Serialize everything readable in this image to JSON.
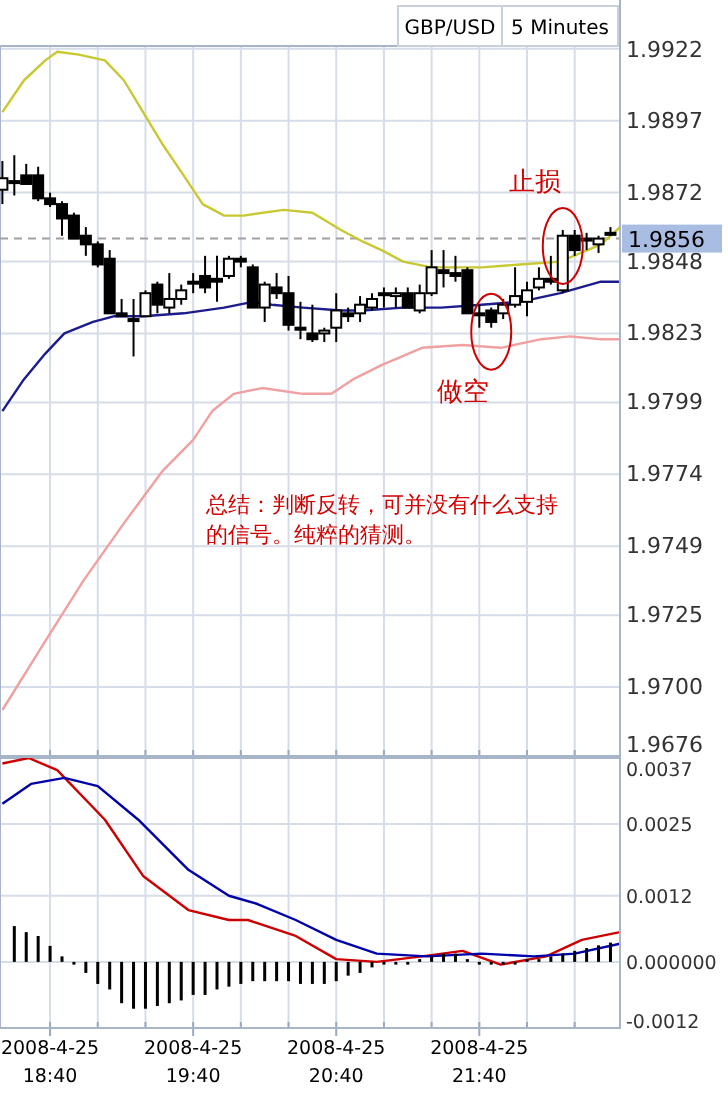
{
  "chart_data": [
    {
      "type": "candlestick",
      "title": "GBP/USD",
      "subtitle": "5 Minutes",
      "x": [
        "2008-04-25T18:20",
        "2008-04-25T18:25",
        "2008-04-25T18:30",
        "2008-04-25T18:35",
        "2008-04-25T18:40",
        "2008-04-25T18:45",
        "2008-04-25T18:50",
        "2008-04-25T18:55",
        "2008-04-25T19:00",
        "2008-04-25T19:05",
        "2008-04-25T19:10",
        "2008-04-25T19:15",
        "2008-04-25T19:20",
        "2008-04-25T19:25",
        "2008-04-25T19:30",
        "2008-04-25T19:35",
        "2008-04-25T19:40",
        "2008-04-25T19:45",
        "2008-04-25T19:50",
        "2008-04-25T19:55",
        "2008-04-25T20:00",
        "2008-04-25T20:05",
        "2008-04-25T20:10",
        "2008-04-25T20:15",
        "2008-04-25T20:20",
        "2008-04-25T20:25",
        "2008-04-25T20:30",
        "2008-04-25T20:35",
        "2008-04-25T20:40",
        "2008-04-25T20:45",
        "2008-04-25T20:50",
        "2008-04-25T20:55",
        "2008-04-25T21:00",
        "2008-04-25T21:05",
        "2008-04-25T21:10",
        "2008-04-25T21:15",
        "2008-04-25T21:20",
        "2008-04-25T21:25",
        "2008-04-25T21:30",
        "2008-04-25T21:35",
        "2008-04-25T21:40",
        "2008-04-25T21:45",
        "2008-04-25T21:50",
        "2008-04-25T21:55",
        "2008-04-25T22:00",
        "2008-04-25T22:05",
        "2008-04-25T22:10",
        "2008-04-25T22:15",
        "2008-04-25T22:20",
        "2008-04-25T22:25",
        "2008-04-25T22:30",
        "2008-04-25T22:35"
      ],
      "ohlc": [
        [
          1.9873,
          1.9883,
          1.9868,
          1.9877
        ],
        [
          1.9876,
          1.9885,
          1.9871,
          1.9876
        ],
        [
          1.9878,
          1.9882,
          1.9875,
          1.9875
        ],
        [
          1.9878,
          1.9881,
          1.9869,
          1.987
        ],
        [
          1.987,
          1.9872,
          1.9867,
          1.9868
        ],
        [
          1.9868,
          1.9869,
          1.9857,
          1.9863
        ],
        [
          1.9864,
          1.9865,
          1.9856,
          1.9856
        ],
        [
          1.9857,
          1.986,
          1.985,
          1.9854
        ],
        [
          1.9854,
          1.9855,
          1.9846,
          1.9847
        ],
        [
          1.9849,
          1.9852,
          1.983,
          1.983
        ],
        [
          1.983,
          1.9835,
          1.9829,
          1.9829
        ],
        [
          1.9828,
          1.9835,
          1.9815,
          1.9828
        ],
        [
          1.9829,
          1.9838,
          1.9829,
          1.9837
        ],
        [
          1.984,
          1.9841,
          1.983,
          1.9833
        ],
        [
          1.9832,
          1.9844,
          1.983,
          1.9835
        ],
        [
          1.9835,
          1.984,
          1.9833,
          1.9838
        ],
        [
          1.9841,
          1.9844,
          1.9837,
          1.9841
        ],
        [
          1.9843,
          1.985,
          1.9837,
          1.9839
        ],
        [
          1.9842,
          1.985,
          1.9834,
          1.9841
        ],
        [
          1.9843,
          1.985,
          1.9842,
          1.9849
        ],
        [
          1.9849,
          1.985,
          1.9846,
          1.9848
        ],
        [
          1.9846,
          1.9847,
          1.9832,
          1.9832
        ],
        [
          1.9832,
          1.9841,
          1.9827,
          1.984
        ],
        [
          1.9839,
          1.9844,
          1.9835,
          1.9837
        ],
        [
          1.9837,
          1.9843,
          1.9824,
          1.9826
        ],
        [
          1.9825,
          1.9834,
          1.9821,
          1.9825
        ],
        [
          1.9823,
          1.9833,
          1.982,
          1.9821
        ],
        [
          1.9823,
          1.9825,
          1.982,
          1.9824
        ],
        [
          1.9825,
          1.9837,
          1.982,
          1.9831
        ],
        [
          1.983,
          1.9832,
          1.9827,
          1.9829
        ],
        [
          1.983,
          1.9836,
          1.9827,
          1.9833
        ],
        [
          1.9832,
          1.9837,
          1.9831,
          1.9835
        ],
        [
          1.9837,
          1.9839,
          1.9832,
          1.9837
        ],
        [
          1.9836,
          1.9839,
          1.9832,
          1.9837
        ],
        [
          1.9837,
          1.9839,
          1.9832,
          1.9832
        ],
        [
          1.9831,
          1.984,
          1.983,
          1.9837
        ],
        [
          1.9837,
          1.9852,
          1.9836,
          1.9846
        ],
        [
          1.9845,
          1.9852,
          1.9839,
          1.9844
        ],
        [
          1.9844,
          1.985,
          1.9841,
          1.9843
        ],
        [
          1.9845,
          1.9846,
          1.983,
          1.983
        ],
        [
          1.983,
          1.9833,
          1.9825,
          1.983
        ],
        [
          1.9831,
          1.9832,
          1.9825,
          1.9827
        ],
        [
          1.983,
          1.9835,
          1.9828,
          1.9833
        ],
        [
          1.9833,
          1.9846,
          1.9832,
          1.9836
        ],
        [
          1.9834,
          1.9841,
          1.9829,
          1.9838
        ],
        [
          1.9839,
          1.9846,
          1.9838,
          1.9842
        ],
        [
          1.9842,
          1.985,
          1.984,
          1.9841
        ],
        [
          1.9838,
          1.9859,
          1.9837,
          1.9857
        ],
        [
          1.9857,
          1.9859,
          1.985,
          1.9852
        ],
        [
          1.9856,
          1.9858,
          1.9852,
          1.9856
        ],
        [
          1.9854,
          1.9857,
          1.9851,
          1.9856
        ],
        [
          1.9858,
          1.986,
          1.9857,
          1.9858
        ]
      ],
      "series": [
        {
          "type": "line",
          "color": "#c8c832",
          "x": [
            "2008-04-25T18:20",
            "2008-04-25T18:29",
            "2008-04-25T18:38",
            "2008-04-25T18:43",
            "2008-04-25T18:52",
            "2008-04-25T19:03",
            "2008-04-25T19:11",
            "2008-04-25T19:19",
            "2008-04-25T19:27",
            "2008-04-25T19:36",
            "2008-04-25T19:44",
            "2008-04-25T19:53",
            "2008-04-25T20:01",
            "2008-04-25T20:18",
            "2008-04-25T20:30",
            "2008-04-25T20:42",
            "2008-04-25T20:51",
            "2008-04-25T20:59",
            "2008-04-25T21:08",
            "2008-04-25T21:20",
            "2008-04-25T21:41",
            "2008-04-25T21:57",
            "2008-04-25T22:14",
            "2008-04-25T22:31",
            "2008-04-25T22:39"
          ],
          "values": [
            1.99,
            1.9911,
            1.9918,
            1.9921,
            1.992,
            1.9918,
            1.9911,
            1.99,
            1.9889,
            1.9878,
            1.9868,
            1.9864,
            1.9864,
            1.9866,
            1.9865,
            1.9859,
            1.9855,
            1.9852,
            1.9848,
            1.9846,
            1.9846,
            1.9847,
            1.9848,
            1.9854,
            1.986
          ]
        },
        {
          "type": "line",
          "color": "#1c1c8c",
          "x": [
            "2008-04-25T18:20",
            "2008-04-25T18:29",
            "2008-04-25T18:38",
            "2008-04-25T18:46",
            "2008-04-25T18:58",
            "2008-04-25T19:07",
            "2008-04-25T19:19",
            "2008-04-25T19:36",
            "2008-04-25T19:53",
            "2008-04-25T20:05",
            "2008-04-25T20:13",
            "2008-04-25T20:26",
            "2008-04-25T20:42",
            "2008-04-25T20:51",
            "2008-04-25T21:08",
            "2008-04-25T21:24",
            "2008-04-25T21:41",
            "2008-04-25T21:57",
            "2008-04-25T22:14",
            "2008-04-25T22:31",
            "2008-04-25T22:39"
          ],
          "values": [
            1.9796,
            1.9807,
            1.9816,
            1.9823,
            1.9827,
            1.9829,
            1.9829,
            1.983,
            1.9832,
            1.9834,
            1.9833,
            1.9832,
            1.9831,
            1.9831,
            1.9832,
            1.9832,
            1.9833,
            1.9834,
            1.9837,
            1.9841,
            1.9841
          ]
        },
        {
          "type": "line",
          "color": "#f0a0a0",
          "x": [
            "2008-04-25T18:20",
            "2008-04-25T18:38",
            "2008-04-25T18:54",
            "2008-04-25T19:11",
            "2008-04-25T19:27",
            "2008-04-25T19:40",
            "2008-04-25T19:48",
            "2008-04-25T19:57",
            "2008-04-25T20:09",
            "2008-04-25T20:26",
            "2008-04-25T20:38",
            "2008-04-25T20:47",
            "2008-04-25T20:59",
            "2008-04-25T21:16",
            "2008-04-25T21:33",
            "2008-04-25T21:49",
            "2008-04-25T22:06",
            "2008-04-25T22:18",
            "2008-04-25T22:31",
            "2008-04-25T22:39"
          ],
          "values": [
            1.9692,
            1.9716,
            1.9737,
            1.9757,
            1.9775,
            1.9786,
            1.9796,
            1.9802,
            1.9804,
            1.9802,
            1.9802,
            1.9807,
            1.9812,
            1.9818,
            1.9819,
            1.9818,
            1.9821,
            1.9822,
            1.9821,
            1.9821
          ]
        }
      ],
      "xlim": [
        "2008-04-25T18:19",
        "2008-04-25T22:39"
      ],
      "xticks": [
        {
          "value": "2008-04-25T18:40",
          "label": null
        },
        {
          "value": "2008-04-25T19:00",
          "label": null
        },
        {
          "value": "2008-04-25T19:20",
          "label": null
        },
        {
          "value": "2008-04-25T19:40",
          "label": null
        },
        {
          "value": "2008-04-25T20:00",
          "label": null
        },
        {
          "value": "2008-04-25T20:20",
          "label": null
        },
        {
          "value": "2008-04-25T20:40",
          "label": null
        },
        {
          "value": "2008-04-25T21:00",
          "label": null
        },
        {
          "value": "2008-04-25T21:20",
          "label": null
        },
        {
          "value": "2008-04-25T21:40",
          "label": null
        },
        {
          "value": "2008-04-25T22:00",
          "label": null
        },
        {
          "value": "2008-04-25T22:20",
          "label": null
        }
      ],
      "ylim": [
        1.9676,
        1.9923
      ],
      "yticks": [
        1.9922,
        1.9897,
        1.9872,
        1.9848,
        1.9823,
        1.9799,
        1.9774,
        1.9749,
        1.9725,
        {
          "value": 1.97,
          "label": "1.9700"
        },
        1.9676
      ],
      "ref_lines": [
        {
          "axis": "y",
          "value": 1.9856,
          "label": "1.9856",
          "color": "#a0a0a0",
          "line_style": "dashed"
        }
      ],
      "annotations": [
        {
          "text": "止损",
          "x": "2008-04-25T22:15",
          "y": 1.9859
        },
        {
          "text": "做空",
          "x": "2008-04-25T21:45",
          "y": 1.9825
        },
        "总结：判断反转，可并没有什么支持的信号。纯粹的猜测。"
      ],
      "grid": true,
      "tick_labels": "y"
    },
    {
      "type": "bar",
      "x": [
        "2008-04-25T18:25",
        "2008-04-25T18:30",
        "2008-04-25T18:35",
        "2008-04-25T18:40",
        "2008-04-25T18:45",
        "2008-04-25T18:50",
        "2008-04-25T18:55",
        "2008-04-25T19:00",
        "2008-04-25T19:05",
        "2008-04-25T19:10",
        "2008-04-25T19:15",
        "2008-04-25T19:20",
        "2008-04-25T19:25",
        "2008-04-25T19:30",
        "2008-04-25T19:35",
        "2008-04-25T19:40",
        "2008-04-25T19:45",
        "2008-04-25T19:50",
        "2008-04-25T19:55",
        "2008-04-25T20:00",
        "2008-04-25T20:05",
        "2008-04-25T20:10",
        "2008-04-25T20:15",
        "2008-04-25T20:20",
        "2008-04-25T20:25",
        "2008-04-25T20:30",
        "2008-04-25T20:35",
        "2008-04-25T20:40",
        "2008-04-25T20:45",
        "2008-04-25T20:50",
        "2008-04-25T20:55",
        "2008-04-25T21:00",
        "2008-04-25T21:05",
        "2008-04-25T21:10",
        "2008-04-25T21:15",
        "2008-04-25T21:20",
        "2008-04-25T21:25",
        "2008-04-25T21:30",
        "2008-04-25T21:35",
        "2008-04-25T21:40",
        "2008-04-25T21:45",
        "2008-04-25T21:50",
        "2008-04-25T21:55",
        "2008-04-25T22:00",
        "2008-04-25T22:05",
        "2008-04-25T22:10",
        "2008-04-25T22:15",
        "2008-04-25T22:20",
        "2008-04-25T22:25",
        "2008-04-25T22:30",
        "2008-04-25T22:35"
      ],
      "values": [
        0.00065,
        0.00054,
        0.00047,
        0.00029,
        0.0001,
        -5e-05,
        -0.0002,
        -0.0004,
        -0.0005,
        -0.00075,
        -0.00085,
        -0.00085,
        -0.0008,
        -0.00075,
        -0.0007,
        -0.0006,
        -0.0006,
        -0.0005,
        -0.00045,
        -0.0004,
        -0.00035,
        -0.00035,
        -0.00035,
        -0.00035,
        -0.0004,
        -0.0004,
        -0.0004,
        -0.00035,
        -0.00025,
        -0.0002,
        -0.0001,
        -5e-05,
        -5e-05,
        -5e-05,
        5e-05,
        0.0001,
        0.00015,
        0.00015,
        5e-05,
        -5e-05,
        -5e-05,
        -5e-05,
        -5e-05,
        5e-05,
        5e-05,
        0.0001,
        0.00015,
        0.0002,
        0.00025,
        0.0003,
        0.00035
      ],
      "color": "#000000",
      "series": [
        {
          "type": "line",
          "color": "#cc0000",
          "x": [
            "2008-04-25T18:20",
            "2008-04-25T18:31",
            "2008-04-25T18:43",
            "2008-04-25T19:03",
            "2008-04-25T19:19",
            "2008-04-25T19:38",
            "2008-04-25T19:55",
            "2008-04-25T20:03",
            "2008-04-25T20:23",
            "2008-04-25T20:40",
            "2008-04-25T20:57",
            "2008-04-25T21:16",
            "2008-04-25T21:33",
            "2008-04-25T21:49",
            "2008-04-25T22:08",
            "2008-04-25T22:23",
            "2008-04-25T22:39"
          ],
          "values": [
            0.0036,
            0.0037,
            0.00348,
            0.00258,
            0.00156,
            0.00094,
            0.00076,
            0.00076,
            0.00047,
            5e-05,
            0.0,
            0.0001,
            0.0002,
            -5e-05,
            0.0001,
            0.0004,
            0.00054
          ]
        },
        {
          "type": "line",
          "color": "#0000aa",
          "x": [
            "2008-04-25T18:20",
            "2008-04-25T18:32",
            "2008-04-25T18:46",
            "2008-04-25T19:00",
            "2008-04-25T19:17",
            "2008-04-25T19:38",
            "2008-04-25T19:55",
            "2008-04-25T20:07",
            "2008-04-25T20:23",
            "2008-04-25T20:40",
            "2008-04-25T20:57",
            "2008-04-25T21:18",
            "2008-04-25T21:41",
            "2008-04-25T22:03",
            "2008-04-25T22:20",
            "2008-04-25T22:39"
          ],
          "values": [
            0.00287,
            0.00323,
            0.00334,
            0.00319,
            0.00258,
            0.00167,
            0.0012,
            0.00105,
            0.00076,
            0.0004,
            0.00015,
            0.0001,
            0.00015,
            0.0001,
            0.00015,
            0.00033
          ]
        }
      ],
      "xlim": [
        "2008-04-25T18:19",
        "2008-04-25T22:39"
      ],
      "xticks": [
        {
          "value": "2008-04-25T18:40",
          "label": "2008-4-25\n18:40"
        },
        {
          "value": "2008-04-25T19:00",
          "label": null
        },
        {
          "value": "2008-04-25T19:20",
          "label": null
        },
        {
          "value": "2008-04-25T19:40",
          "label": "2008-4-25\n19:40"
        },
        {
          "value": "2008-04-25T20:00",
          "label": null
        },
        {
          "value": "2008-04-25T20:20",
          "label": null
        },
        {
          "value": "2008-04-25T20:40",
          "label": "2008-4-25\n20:40"
        },
        {
          "value": "2008-04-25T21:00",
          "label": null
        },
        {
          "value": "2008-04-25T21:20",
          "label": null
        },
        {
          "value": "2008-04-25T21:40",
          "label": "2008-4-25\n21:40"
        },
        {
          "value": "2008-04-25T22:00",
          "label": null
        },
        {
          "value": "2008-04-25T22:20",
          "label": null
        }
      ],
      "ylim": [
        -0.0012,
        0.0037
      ],
      "yticks": [
        0.0037,
        0.0025,
        0.0012,
        {
          "value": 0,
          "label": "0.000000"
        },
        -0.0012
      ],
      "grid": true
    }
  ]
}
